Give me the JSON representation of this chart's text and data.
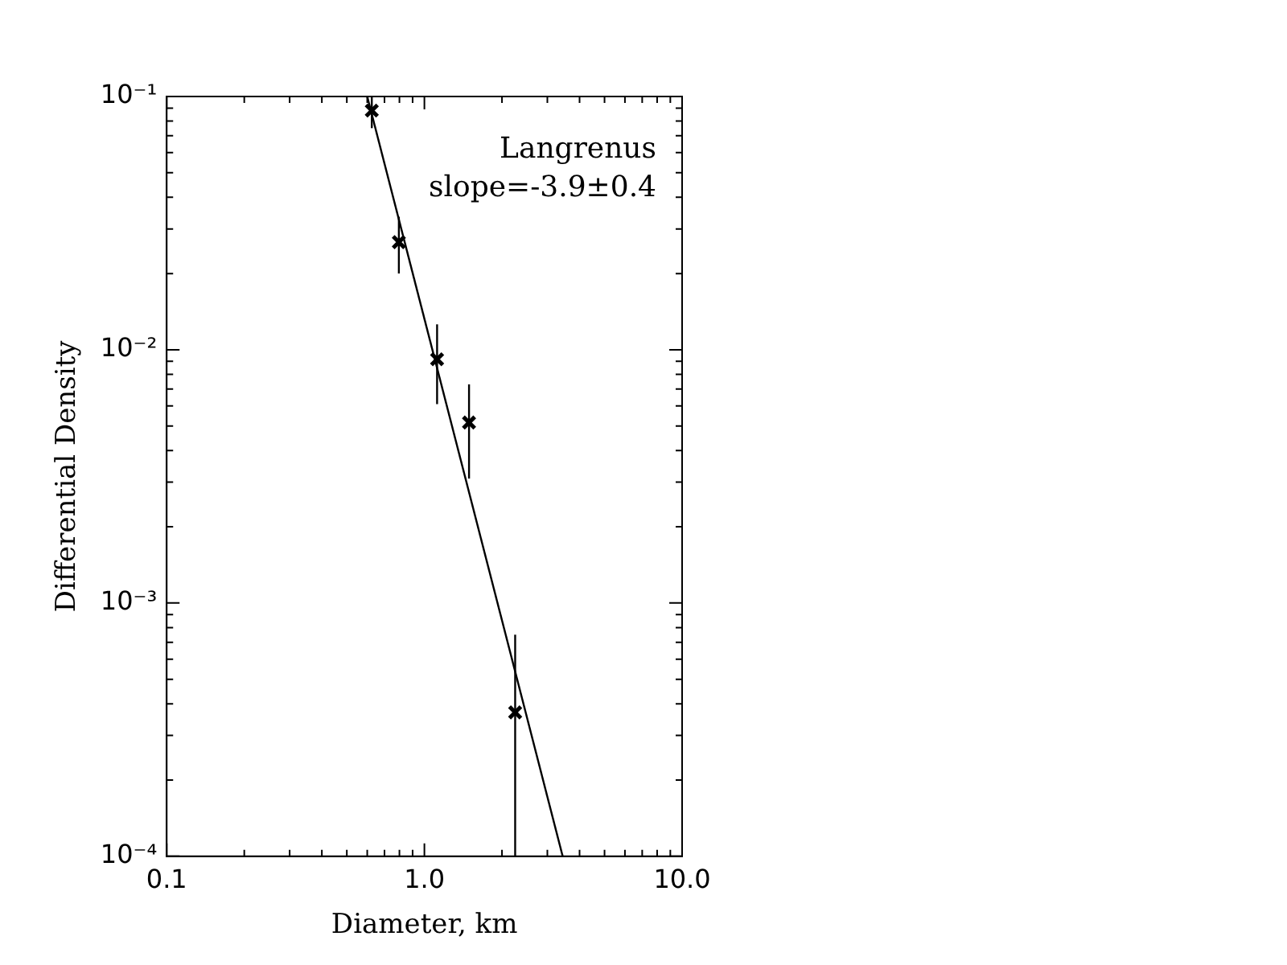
{
  "chart_data": {
    "type": "scatter",
    "xlabel": "Diameter, km",
    "ylabel": "Differential Density",
    "log": "xy",
    "xlim": [
      0.1,
      10
    ],
    "ylim": [
      0.0001,
      0.1
    ],
    "xticks": [
      0.1,
      {
        "value": 1,
        "label": "1.0"
      },
      {
        "value": 10,
        "label": "10.0"
      }
    ],
    "yticks": [
      {
        "value": 0.0001,
        "label": "10⁻⁴"
      },
      {
        "value": 0.001,
        "label": "10⁻³"
      },
      {
        "value": 0.01,
        "label": "10⁻²"
      },
      {
        "value": 0.1,
        "label": "10⁻¹"
      }
    ],
    "annotations": [
      "Langrenus",
      "slope=-3.9±0.4"
    ],
    "series": [
      {
        "color": "#000000",
        "marker": "cross",
        "x": [
          0.625,
          0.796,
          1.12,
          1.49,
          2.25
        ],
        "values": [
          0.088,
          0.0266,
          0.00917,
          0.00516,
          0.00037
        ],
        "errors": [
          [
            0.075,
            0.1
          ],
          [
            0.02,
            0.0335
          ],
          [
            0.0061,
            0.0126
          ],
          [
            0.0031,
            0.0073
          ],
          [
            0.0001,
            0.00075
          ]
        ]
      },
      {
        "type": "line",
        "color": "#000000",
        "marker": "none",
        "line_style": "solid",
        "x": [
          0.6,
          3.44
        ],
        "values": [
          0.1,
          0.0001
        ]
      }
    ]
  }
}
